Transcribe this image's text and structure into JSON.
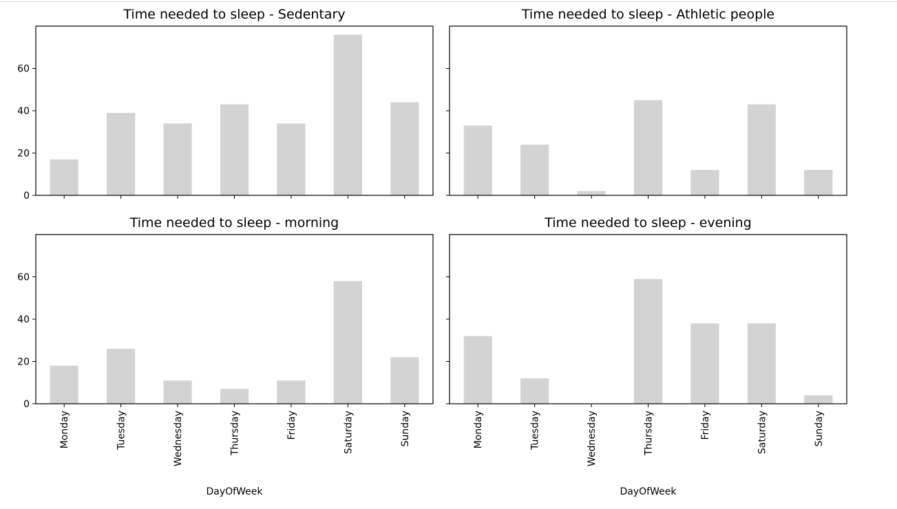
{
  "chart_data": [
    {
      "type": "bar",
      "title": "Time needed to sleep - Sedentary",
      "categories": [
        "Monday",
        "Tuesday",
        "Wednesday",
        "Thursday",
        "Friday",
        "Saturday",
        "Sunday"
      ],
      "values": [
        17,
        39,
        34,
        43,
        34,
        76,
        44
      ],
      "xlabel": "",
      "ylabel": "",
      "ylim": [
        0,
        80
      ],
      "yticks": [
        0,
        20,
        40,
        60
      ],
      "bar_color": "#d3d3d3",
      "grid": false
    },
    {
      "type": "bar",
      "title": "Time needed to sleep - Athletic people",
      "categories": [
        "Monday",
        "Tuesday",
        "Wednesday",
        "Thursday",
        "Friday",
        "Saturday",
        "Sunday"
      ],
      "values": [
        33,
        24,
        2,
        45,
        12,
        43,
        12
      ],
      "xlabel": "",
      "ylabel": "",
      "ylim": [
        0,
        80
      ],
      "yticks": [
        0,
        20,
        40,
        60
      ],
      "bar_color": "#d3d3d3",
      "grid": false
    },
    {
      "type": "bar",
      "title": "Time needed to sleep - morning",
      "categories": [
        "Monday",
        "Tuesday",
        "Wednesday",
        "Thursday",
        "Friday",
        "Saturday",
        "Sunday"
      ],
      "values": [
        18,
        26,
        11,
        7,
        11,
        58,
        22
      ],
      "xlabel": "DayOfWeek",
      "ylabel": "",
      "ylim": [
        0,
        80
      ],
      "yticks": [
        0,
        20,
        40,
        60
      ],
      "bar_color": "#d3d3d3",
      "grid": false
    },
    {
      "type": "bar",
      "title": "Time needed to sleep - evening",
      "categories": [
        "Monday",
        "Tuesday",
        "Wednesday",
        "Thursday",
        "Friday",
        "Saturday",
        "Sunday"
      ],
      "values": [
        32,
        12,
        0,
        59,
        38,
        38,
        4
      ],
      "xlabel": "DayOfWeek",
      "ylabel": "",
      "ylim": [
        0,
        80
      ],
      "yticks": [
        0,
        20,
        40,
        60
      ],
      "bar_color": "#d3d3d3",
      "grid": false
    }
  ]
}
